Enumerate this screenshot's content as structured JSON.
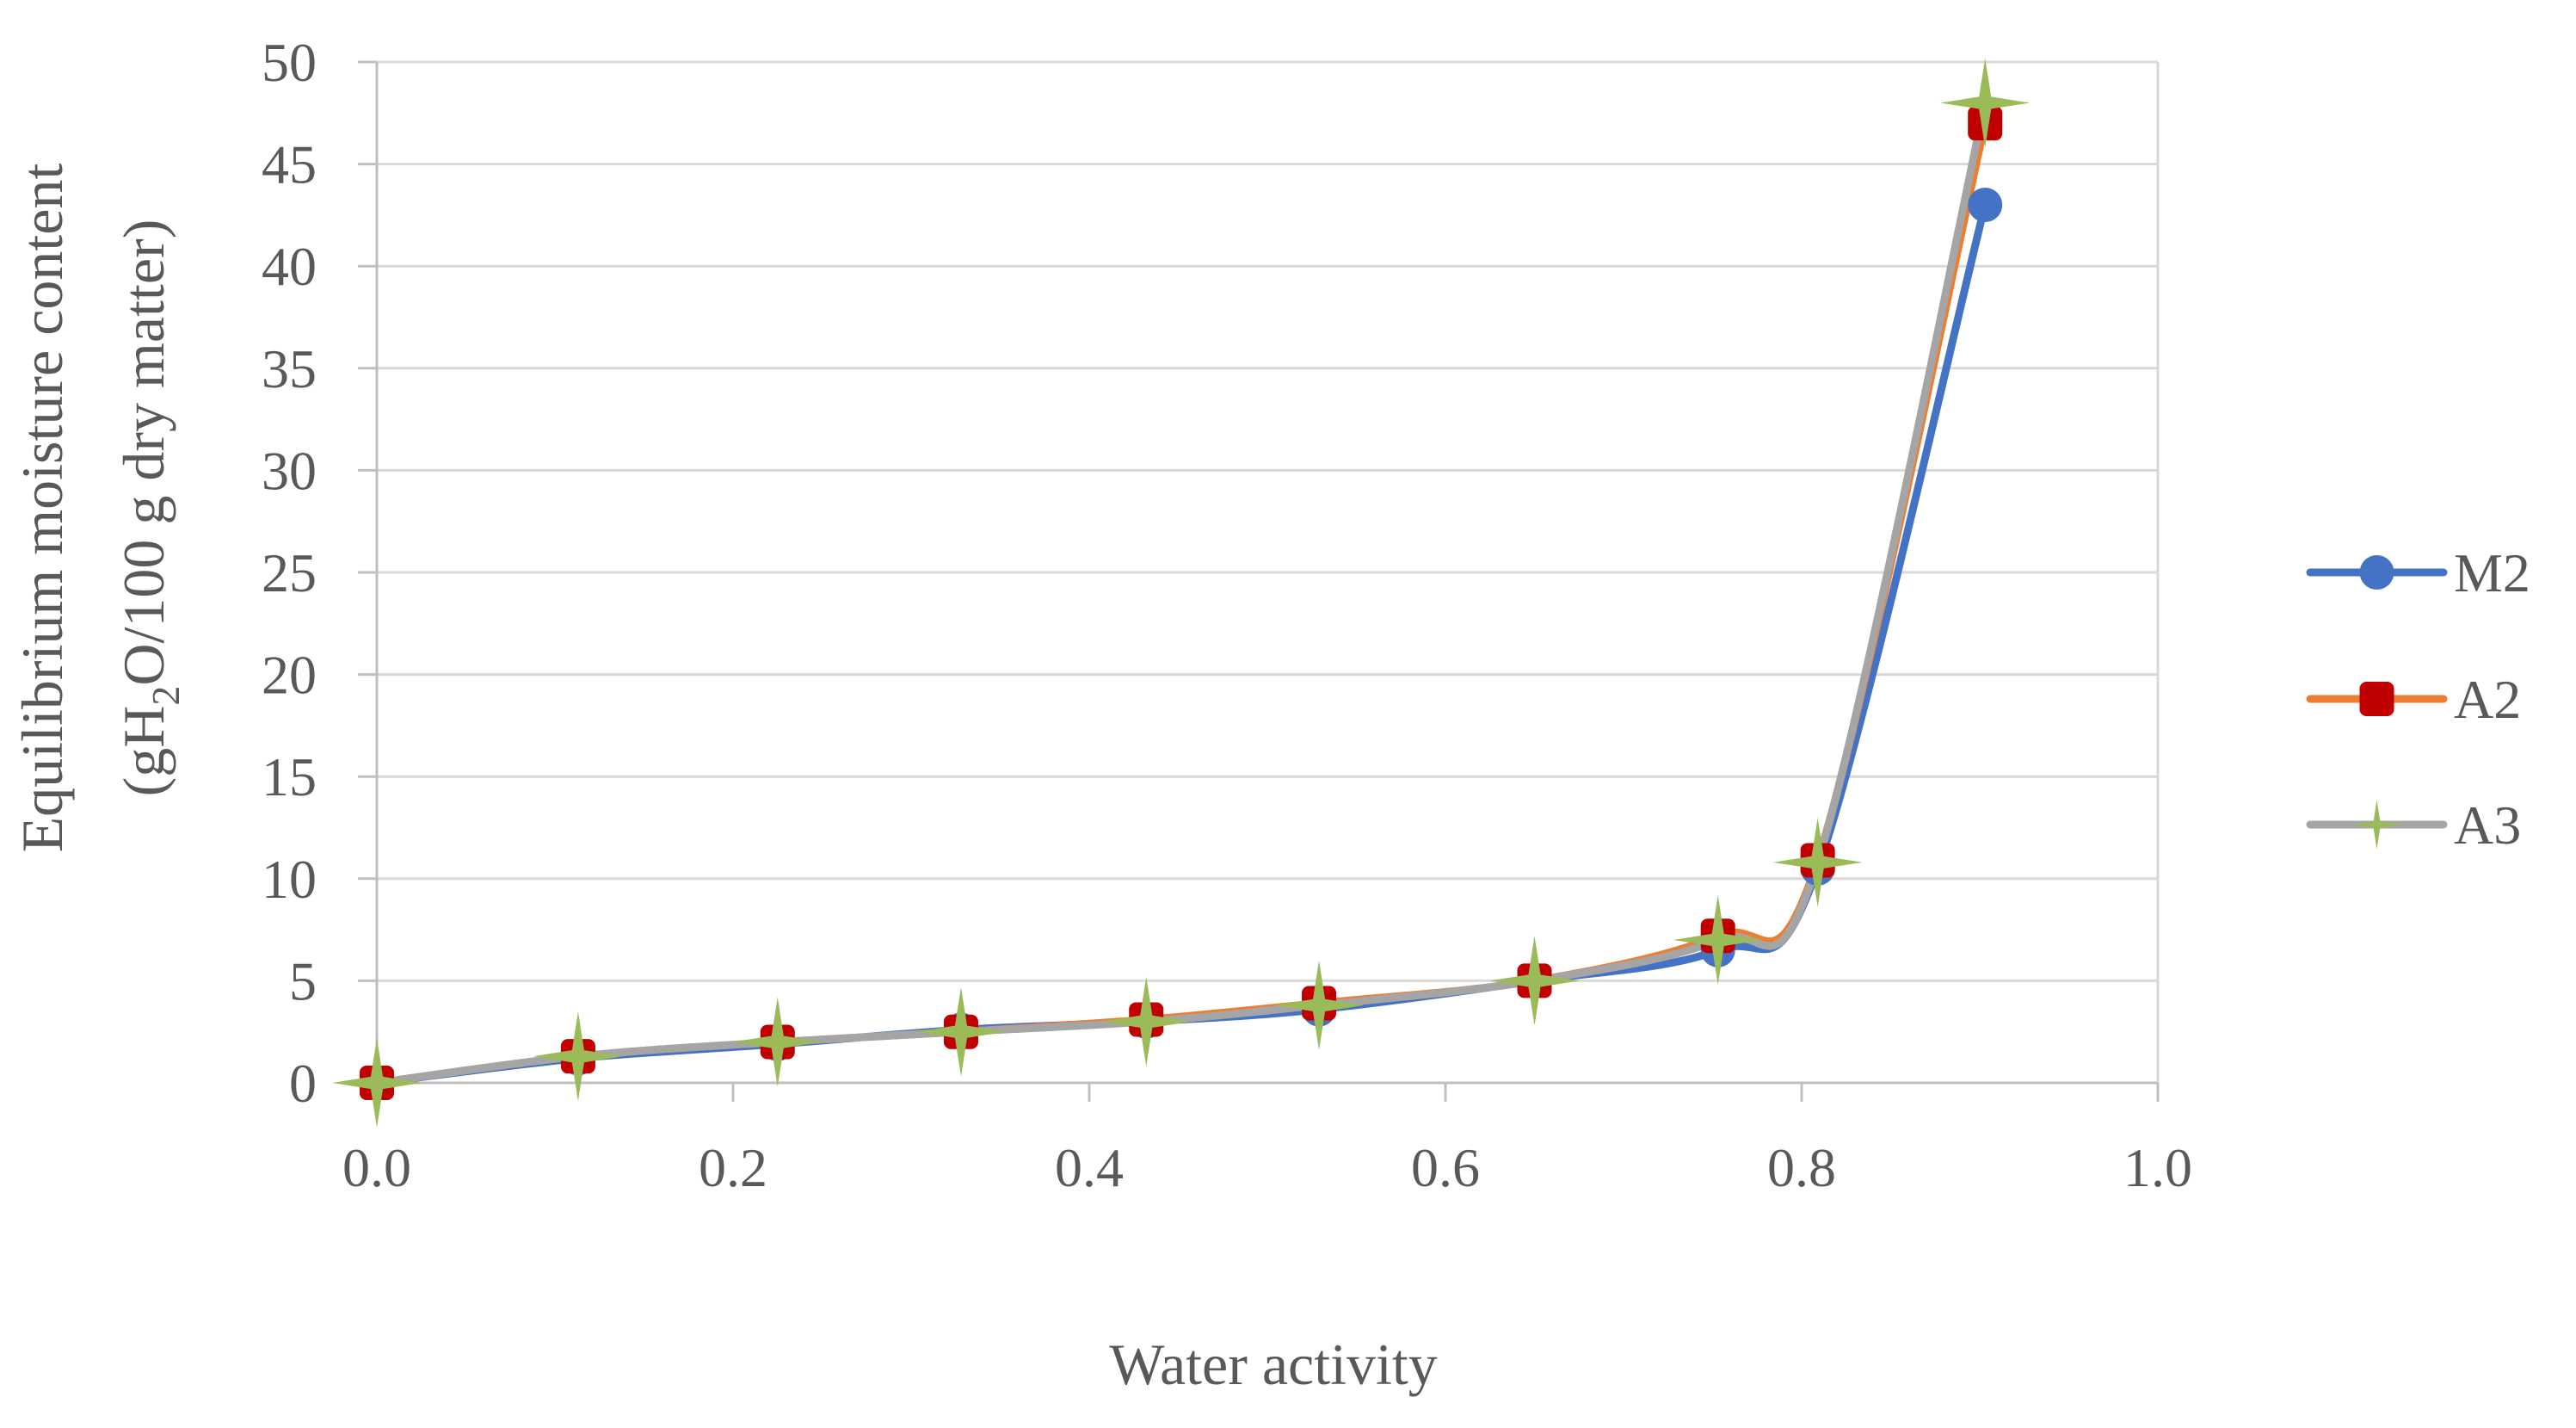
{
  "chart_data": {
    "type": "line",
    "title": "",
    "xlabel": "Water activity",
    "ylabel": {
      "line1": "Equilibrium moisture content",
      "line2_prefix": "(gH",
      "line2_sub": "2",
      "line2_suffix": "O/100 g dry matter)"
    },
    "xlim": [
      0,
      1.0
    ],
    "ylim": [
      0,
      50
    ],
    "x_ticks": [
      "0.0",
      "0.2",
      "0.4",
      "0.6",
      "0.8",
      "1.0"
    ],
    "x_tick_values": [
      0.0,
      0.2,
      0.4,
      0.6,
      0.8,
      1.0
    ],
    "y_ticks": [
      "0",
      "5",
      "10",
      "15",
      "20",
      "25",
      "30",
      "35",
      "40",
      "45",
      "50"
    ],
    "y_tick_values": [
      0,
      5,
      10,
      15,
      20,
      25,
      30,
      35,
      40,
      45,
      50
    ],
    "grid": true,
    "legend_position": "right",
    "series": [
      {
        "name": "M2",
        "color": "#4472C4",
        "marker": "circle",
        "marker_color": "#4472C4",
        "x": [
          0.0,
          0.113,
          0.225,
          0.328,
          0.432,
          0.529,
          0.65,
          0.753,
          0.809,
          0.903
        ],
        "y": [
          0.0,
          1.2,
          1.9,
          2.6,
          3.0,
          3.6,
          5.0,
          6.5,
          10.5,
          43.0
        ]
      },
      {
        "name": "A2",
        "color": "#ED7D31",
        "marker": "square",
        "marker_color": "#C00000",
        "x": [
          0.0,
          0.113,
          0.225,
          0.328,
          0.432,
          0.529,
          0.65,
          0.753,
          0.809,
          0.903
        ],
        "y": [
          0.0,
          1.3,
          2.0,
          2.5,
          3.1,
          3.9,
          5.0,
          7.2,
          10.9,
          47.0
        ]
      },
      {
        "name": "A3",
        "color": "#A5A5A5",
        "marker": "star",
        "marker_color": "#9BBB59",
        "x": [
          0.0,
          0.113,
          0.225,
          0.328,
          0.432,
          0.529,
          0.65,
          0.753,
          0.809,
          0.903
        ],
        "y": [
          0.0,
          1.3,
          2.0,
          2.5,
          3.0,
          3.8,
          5.0,
          7.0,
          10.8,
          48.0
        ]
      }
    ]
  },
  "colors": {
    "grid": "#D9D9D9",
    "axis": "#BFBFBF",
    "text": "#595959"
  }
}
